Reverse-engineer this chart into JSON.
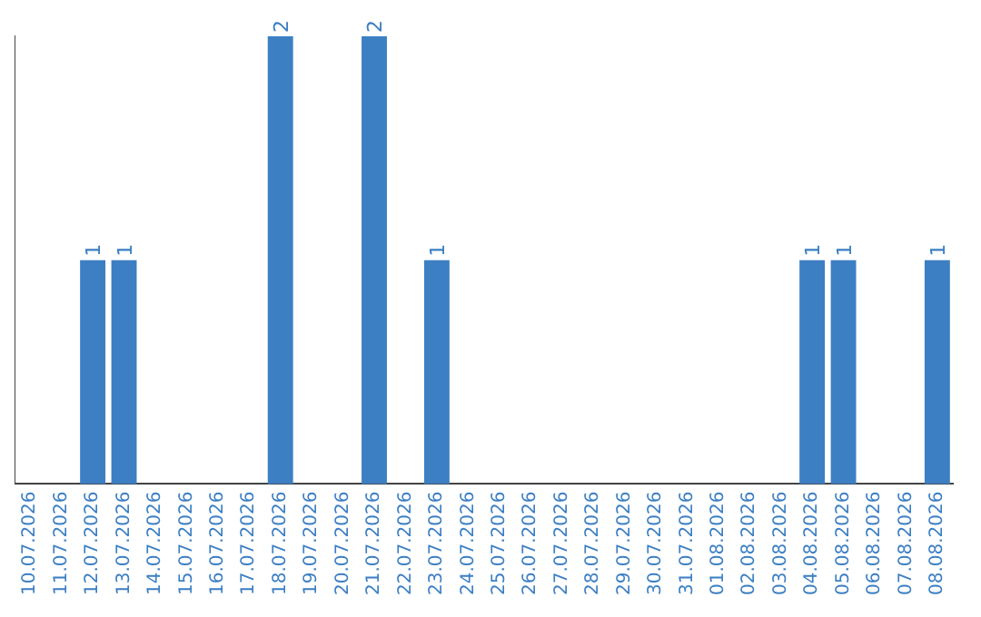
{
  "chart_data": {
    "type": "bar",
    "categories": [
      "10.07.2026",
      "11.07.2026",
      "12.07.2026",
      "13.07.2026",
      "14.07.2026",
      "15.07.2026",
      "16.07.2026",
      "17.07.2026",
      "18.07.2026",
      "19.07.2026",
      "20.07.2026",
      "21.07.2026",
      "22.07.2026",
      "23.07.2026",
      "24.07.2026",
      "25.07.2026",
      "26.07.2026",
      "27.07.2026",
      "28.07.2026",
      "29.07.2026",
      "30.07.2026",
      "31.07.2026",
      "01.08.2026",
      "02.08.2026",
      "03.08.2026",
      "04.08.2026",
      "05.08.2026",
      "06.08.2026",
      "07.08.2026",
      "08.08.2026"
    ],
    "values": [
      0,
      0,
      1,
      1,
      0,
      0,
      0,
      0,
      2,
      0,
      0,
      2,
      0,
      1,
      0,
      0,
      0,
      0,
      0,
      0,
      0,
      0,
      0,
      0,
      0,
      1,
      1,
      0,
      0,
      1
    ],
    "value_labels": [
      null,
      null,
      "1",
      "1",
      null,
      null,
      null,
      null,
      "2",
      null,
      null,
      "2",
      null,
      "1",
      null,
      null,
      null,
      null,
      null,
      null,
      null,
      null,
      null,
      null,
      null,
      "1",
      "1",
      null,
      null,
      "1"
    ],
    "color": "#3c7fc3",
    "ylim": [
      0,
      2
    ],
    "grid": false,
    "legend": false,
    "tick_labels": "x"
  }
}
